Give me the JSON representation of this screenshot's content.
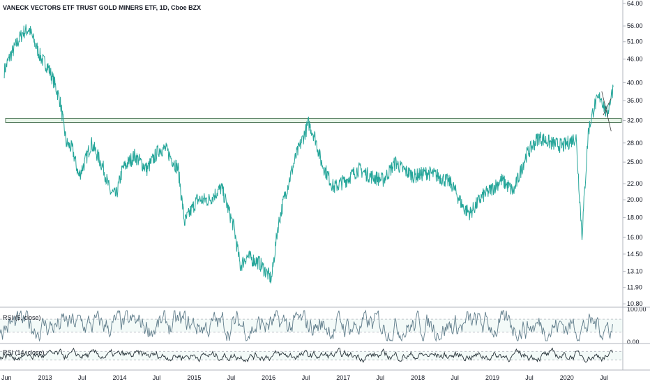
{
  "chart_data": {
    "type": "line",
    "title": "VANECK VECTORS ETF TRUST GOLD MINERS ETF, 1D, Cboe BZX",
    "price_axis": {
      "scale": "log",
      "ylim": [
        10.8,
        64.0
      ],
      "ticks": [
        "64.00",
        "56.00",
        "51.00",
        "46.00",
        "40.00",
        "36.00",
        "32.00",
        "28.00",
        "25.00",
        "22.00",
        "20.00",
        "18.00",
        "16.00",
        "14.50",
        "13.10",
        "11.90",
        "10.80"
      ]
    },
    "time_axis": {
      "ticks": [
        "Jun",
        "2013",
        "Jul",
        "2014",
        "Jul",
        "2015",
        "Jul",
        "2016",
        "Jul",
        "2017",
        "Jul",
        "2018",
        "Jul",
        "2019",
        "Jul",
        "2020",
        "Jul"
      ]
    },
    "series": [
      {
        "type": "line",
        "x": [
          "2012-06",
          "2012-07",
          "2012-09",
          "2012-10",
          "2012-11",
          "2012-12",
          "2013-01",
          "2013-02",
          "2013-03",
          "2013-04",
          "2013-05",
          "2013-06",
          "2013-07",
          "2013-08",
          "2013-09",
          "2013-10",
          "2013-11",
          "2013-12",
          "2014-01",
          "2014-03",
          "2014-05",
          "2014-07",
          "2014-08",
          "2014-10",
          "2014-11",
          "2015-01",
          "2015-03",
          "2015-05",
          "2015-07",
          "2015-08",
          "2015-09",
          "2015-11",
          "2016-01",
          "2016-02",
          "2016-03",
          "2016-05",
          "2016-07",
          "2016-08",
          "2016-09",
          "2016-11",
          "2017-01",
          "2017-03",
          "2017-05",
          "2017-07",
          "2017-09",
          "2017-10",
          "2017-12",
          "2018-02",
          "2018-04",
          "2018-06",
          "2018-08",
          "2018-09",
          "2018-11",
          "2018-12",
          "2019-02",
          "2019-04",
          "2019-06",
          "2019-08",
          "2019-10",
          "2019-12",
          "2020-02",
          "2020-03",
          "2020-04",
          "2020-05",
          "2020-06",
          "2020-07",
          "2020-08"
        ],
        "y": [
          43,
          47,
          54,
          55,
          50,
          46,
          44,
          40,
          36,
          28,
          27,
          23,
          25,
          28,
          26,
          24,
          21,
          20.5,
          24,
          26,
          24,
          27,
          27,
          24,
          17.5,
          20,
          20,
          21.5,
          17,
          13.5,
          14.3,
          13.8,
          12.5,
          17,
          20,
          26,
          31.5,
          29,
          25,
          21.5,
          22.5,
          24,
          23,
          22.5,
          25,
          24,
          23,
          23.5,
          23,
          22,
          19,
          18.5,
          20.5,
          21,
          22.5,
          21,
          26,
          29,
          28,
          27.5,
          29,
          16.2,
          30,
          35,
          37,
          33,
          39
        ]
      },
      {
        "name": "RSI (5, close)",
        "ylim": [
          0,
          100
        ],
        "ticks": [
          "100.00",
          "0.00"
        ]
      },
      {
        "name": "RSI (14, close)"
      }
    ]
  }
}
